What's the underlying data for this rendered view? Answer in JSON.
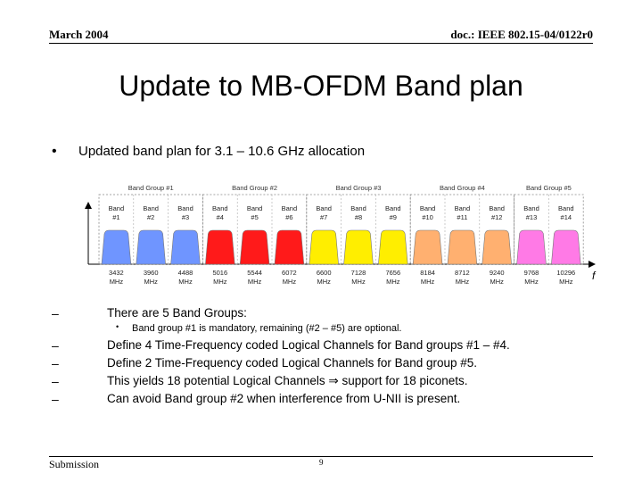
{
  "header": {
    "date": "March 2004",
    "doc": "doc.: IEEE 802.15-04/0122r0"
  },
  "title": "Update to MB-OFDM Band plan",
  "bullet": "Updated band plan for 3.1 – 10.6 GHz allocation",
  "sub_bullets": [
    "There are 5 Band Groups:",
    "Define 4 Time-Frequency coded Logical Channels  for Band groups #1 – #4.",
    "Define 2 Time-Frequency coded Logical Channels for Band group #5.",
    "This yields 18 potential Logical Channels ⇒ support for 18 piconets.",
    "Can avoid Band group #2 when interference from U-NII is present."
  ],
  "sub_sub_bullet": "Band group #1 is mandatory, remaining (#2 – #5)  are optional.",
  "footer": {
    "left": "Submission",
    "page": "9"
  },
  "chart_data": {
    "type": "band-plan",
    "axis_label": "f",
    "groups": [
      {
        "label": "Band Group #1",
        "color": "#6f95ff",
        "bands": [
          "Band #1",
          "Band #2",
          "Band #3"
        ]
      },
      {
        "label": "Band Group #2",
        "color": "#ff1a1a",
        "bands": [
          "Band #4",
          "Band #5",
          "Band #6"
        ]
      },
      {
        "label": "Band Group #3",
        "color": "#ffee00",
        "bands": [
          "Band #7",
          "Band #8",
          "Band #9"
        ]
      },
      {
        "label": "Band Group #4",
        "color": "#ffb070",
        "bands": [
          "Band #10",
          "Band #11",
          "Band #12"
        ]
      },
      {
        "label": "Band Group #5",
        "color": "#ff7ae6",
        "bands": [
          "Band #13",
          "Band #14"
        ]
      }
    ],
    "frequencies": [
      "3432 MHz",
      "3960 MHz",
      "4488 MHz",
      "5016 MHz",
      "5544 MHz",
      "6072 MHz",
      "6600 MHz",
      "7128 MHz",
      "7656 MHz",
      "8184 MHz",
      "8712 MHz",
      "9240 MHz",
      "9768 MHz",
      "10296 MHz"
    ]
  }
}
